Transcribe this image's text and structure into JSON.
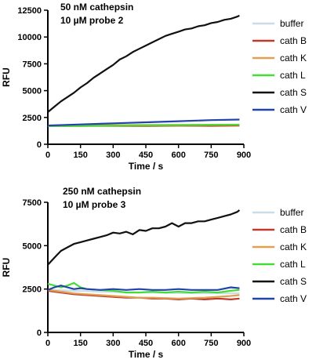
{
  "chart_data": [
    {
      "type": "line",
      "title_line1": "50 nM cathepsin",
      "title_line2": "10 µM probe 2",
      "xlabel": "Time / s",
      "ylabel": "RFU",
      "xlim": [
        0,
        900
      ],
      "ylim": [
        0,
        12500
      ],
      "xticks": [
        0,
        150,
        300,
        450,
        600,
        750,
        900
      ],
      "yticks": [
        0,
        2500,
        5000,
        7500,
        10000,
        12500
      ],
      "legend_position": "right",
      "series": [
        {
          "name": "buffer",
          "color": "#c9dde8",
          "x": [
            0,
            150,
            300,
            450,
            600,
            750,
            880
          ],
          "y": [
            1750,
            1760,
            1780,
            1790,
            1800,
            1810,
            1820
          ]
        },
        {
          "name": "cath B",
          "color": "#c0392b",
          "x": [
            0,
            150,
            300,
            450,
            600,
            750,
            880
          ],
          "y": [
            1700,
            1700,
            1720,
            1710,
            1730,
            1720,
            1740
          ]
        },
        {
          "name": "cath K",
          "color": "#e0a050",
          "x": [
            0,
            150,
            300,
            450,
            600,
            750,
            880
          ],
          "y": [
            1750,
            1760,
            1780,
            1790,
            1800,
            1820,
            1830
          ]
        },
        {
          "name": "cath L",
          "color": "#44dd33",
          "x": [
            0,
            150,
            300,
            450,
            600,
            750,
            880
          ],
          "y": [
            1700,
            1720,
            1740,
            1760,
            1780,
            1800,
            1810
          ]
        },
        {
          "name": "cath S",
          "color": "#111111",
          "x": [
            0,
            30,
            60,
            90,
            120,
            150,
            180,
            210,
            240,
            270,
            300,
            330,
            360,
            390,
            420,
            450,
            480,
            510,
            540,
            570,
            600,
            630,
            660,
            690,
            720,
            750,
            780,
            810,
            840,
            870,
            880
          ],
          "y": [
            3000,
            3500,
            4000,
            4400,
            4800,
            5300,
            5700,
            6200,
            6600,
            7000,
            7400,
            7900,
            8200,
            8600,
            8900,
            9200,
            9500,
            9800,
            10100,
            10300,
            10500,
            10700,
            10800,
            11000,
            11100,
            11300,
            11400,
            11600,
            11700,
            11900,
            12000
          ]
        },
        {
          "name": "cath V",
          "color": "#2244aa",
          "x": [
            0,
            150,
            300,
            450,
            600,
            750,
            880
          ],
          "y": [
            1750,
            1850,
            1950,
            2050,
            2150,
            2250,
            2300
          ]
        }
      ]
    },
    {
      "type": "line",
      "title_line1": "250 nM cathepsin",
      "title_line2": "10 µM probe 3",
      "xlabel": "Time / s",
      "ylabel": "RFU",
      "xlim": [
        0,
        900
      ],
      "ylim": [
        0,
        7500
      ],
      "xticks": [
        0,
        150,
        300,
        450,
        600,
        750,
        900
      ],
      "yticks": [
        0,
        2500,
        5000,
        7500
      ],
      "legend_position": "right",
      "series": [
        {
          "name": "buffer",
          "color": "#c9dde8",
          "x": [
            0,
            60,
            120,
            180,
            240,
            300,
            360,
            420,
            480,
            540,
            600,
            660,
            720,
            780,
            840,
            880
          ],
          "y": [
            2450,
            2420,
            2400,
            2380,
            2350,
            2330,
            2320,
            2300,
            2290,
            2280,
            2270,
            2260,
            2260,
            2250,
            2250,
            2250
          ]
        },
        {
          "name": "cath B",
          "color": "#c0392b",
          "x": [
            0,
            60,
            120,
            180,
            240,
            300,
            360,
            420,
            480,
            540,
            600,
            660,
            720,
            780,
            840,
            880
          ],
          "y": [
            2400,
            2300,
            2200,
            2150,
            2100,
            2050,
            2000,
            2000,
            1950,
            1950,
            1900,
            1950,
            1900,
            1950,
            1900,
            1950
          ]
        },
        {
          "name": "cath K",
          "color": "#e0a050",
          "x": [
            0,
            60,
            120,
            180,
            240,
            300,
            360,
            420,
            480,
            540,
            600,
            660,
            720,
            780,
            840,
            880
          ],
          "y": [
            2450,
            2350,
            2250,
            2200,
            2150,
            2100,
            2050,
            2000,
            2000,
            1980,
            1950,
            1980,
            2000,
            2050,
            2100,
            2150
          ]
        },
        {
          "name": "cath L",
          "color": "#44dd33",
          "x": [
            0,
            30,
            60,
            90,
            120,
            150,
            180,
            240,
            300,
            360,
            420,
            480,
            540,
            600,
            660,
            720,
            780,
            840,
            880
          ],
          "y": [
            2800,
            2700,
            2600,
            2700,
            2850,
            2600,
            2500,
            2450,
            2400,
            2300,
            2300,
            2350,
            2300,
            2350,
            2300,
            2350,
            2300,
            2400,
            2450
          ]
        },
        {
          "name": "cath S",
          "color": "#111111",
          "x": [
            0,
            30,
            60,
            90,
            120,
            150,
            180,
            210,
            240,
            270,
            300,
            330,
            360,
            390,
            420,
            450,
            480,
            510,
            540,
            570,
            600,
            630,
            660,
            690,
            720,
            750,
            780,
            810,
            840,
            870,
            880
          ],
          "y": [
            3900,
            4300,
            4700,
            4900,
            5100,
            5200,
            5300,
            5400,
            5500,
            5600,
            5750,
            5700,
            5800,
            5650,
            5900,
            5850,
            6000,
            6000,
            6100,
            6300,
            6100,
            6300,
            6300,
            6400,
            6400,
            6500,
            6600,
            6700,
            6800,
            6950,
            7050
          ]
        },
        {
          "name": "cath V",
          "color": "#2244aa",
          "x": [
            0,
            30,
            60,
            90,
            120,
            150,
            180,
            240,
            300,
            360,
            420,
            480,
            540,
            600,
            660,
            720,
            780,
            840,
            880
          ],
          "y": [
            2450,
            2600,
            2700,
            2600,
            2500,
            2550,
            2500,
            2450,
            2500,
            2450,
            2500,
            2450,
            2450,
            2500,
            2450,
            2450,
            2450,
            2600,
            2550
          ]
        }
      ]
    }
  ]
}
